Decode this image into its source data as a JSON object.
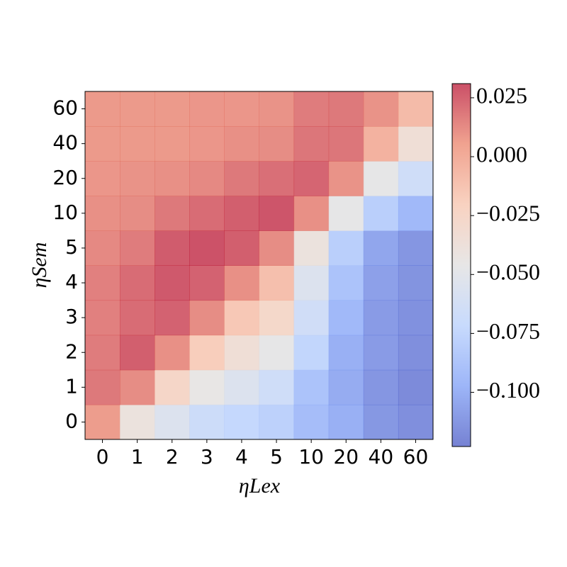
{
  "chart_data": {
    "type": "heatmap",
    "xlabel": "ηLex",
    "ylabel": "ηSem",
    "x_categories": [
      "0",
      "1",
      "2",
      "3",
      "4",
      "5",
      "10",
      "20",
      "40",
      "60"
    ],
    "y_categories": [
      "0",
      "1",
      "2",
      "3",
      "4",
      "5",
      "10",
      "20",
      "40",
      "60"
    ],
    "values": [
      [
        0.007,
        -0.04,
        -0.055,
        -0.068,
        -0.073,
        -0.078,
        -0.092,
        -0.1,
        -0.112,
        -0.116
      ],
      [
        0.018,
        0.012,
        -0.025,
        -0.045,
        -0.055,
        -0.066,
        -0.088,
        -0.102,
        -0.113,
        -0.118
      ],
      [
        0.017,
        0.026,
        0.011,
        -0.018,
        -0.035,
        -0.047,
        -0.075,
        -0.1,
        -0.11,
        -0.116
      ],
      [
        0.016,
        0.022,
        0.025,
        0.012,
        -0.015,
        -0.027,
        -0.065,
        -0.095,
        -0.11,
        -0.115
      ],
      [
        0.016,
        0.022,
        0.028,
        0.025,
        0.011,
        -0.01,
        -0.055,
        -0.088,
        -0.108,
        -0.114
      ],
      [
        0.013,
        0.017,
        0.027,
        0.03,
        0.026,
        0.012,
        -0.04,
        -0.08,
        -0.105,
        -0.113
      ],
      [
        0.011,
        0.012,
        0.018,
        0.022,
        0.026,
        0.029,
        0.011,
        -0.047,
        -0.08,
        -0.095
      ],
      [
        0.009,
        0.01,
        0.011,
        0.013,
        0.018,
        0.021,
        0.024,
        0.01,
        -0.047,
        -0.066
      ],
      [
        0.008,
        0.008,
        0.008,
        0.009,
        0.011,
        0.012,
        0.019,
        0.019,
        -0.003,
        -0.035
      ],
      [
        0.008,
        0.008,
        0.008,
        0.009,
        0.009,
        0.01,
        0.017,
        0.018,
        0.01,
        -0.008
      ]
    ],
    "clim": [
      -0.123,
      0.031
    ],
    "cticks": [
      {
        "value": 0.025,
        "label": "0.025"
      },
      {
        "value": 0,
        "label": "0.000"
      },
      {
        "value": -0.025,
        "label": "−0.025"
      },
      {
        "value": -0.05,
        "label": "−0.050"
      },
      {
        "value": -0.075,
        "label": "−0.075"
      },
      {
        "value": -0.1,
        "label": "−0.100"
      }
    ],
    "colormap": [
      "#3b4cc0",
      "#7396f5",
      "#b0cbfc",
      "#dddcdc",
      "#f6bfa6",
      "#ea7b60",
      "#b40426"
    ],
    "opacity": 0.7
  }
}
